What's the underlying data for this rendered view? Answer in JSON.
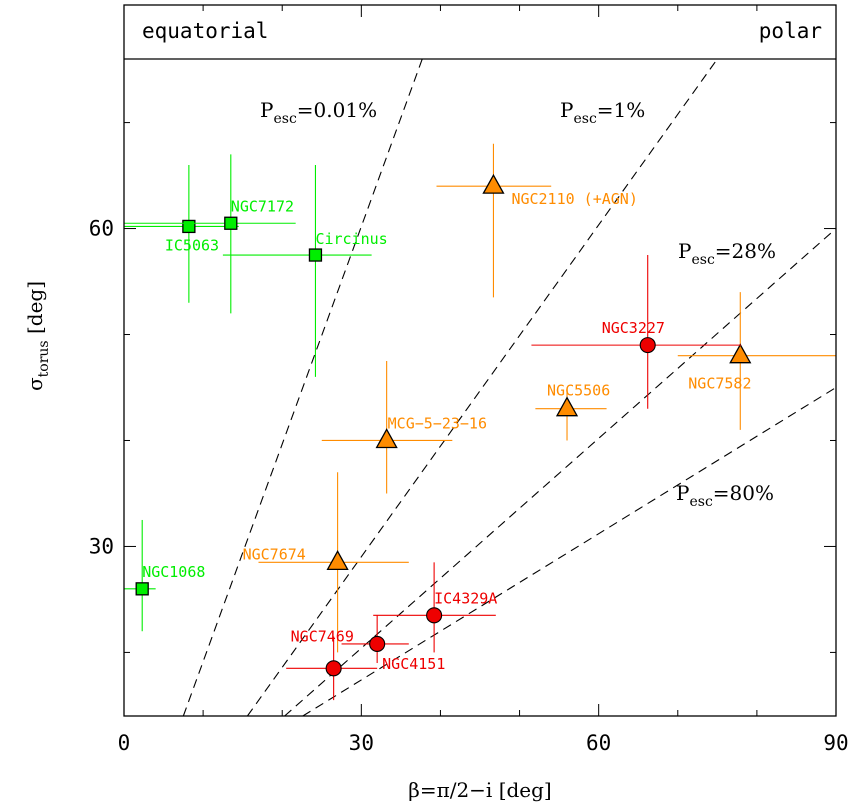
{
  "chart_data": {
    "type": "scatter",
    "title": "",
    "xlabel": "β=π/2−i [deg]",
    "ylabel": "σ_torus [deg]",
    "xlim": [
      0,
      90
    ],
    "ylim": [
      14,
      76
    ],
    "xticks": [
      0,
      30,
      60,
      90
    ],
    "yticks": [
      30,
      60
    ],
    "header": {
      "left": "equatorial",
      "right": "polar"
    },
    "colors": {
      "green": "#00ee00",
      "orange": "#ff8c00",
      "red": "#ee0000"
    },
    "escape_curves": [
      {
        "label_main": "P",
        "label_sub": "esc",
        "label_value": "=0.01%",
        "x_start": 7.5,
        "x_end": 37.7
      },
      {
        "label_main": "P",
        "label_sub": "esc",
        "label_value": "=1%",
        "x_start": 15.6,
        "x_end": 75.0
      },
      {
        "label_main": "P",
        "label_sub": "esc",
        "label_value": "=28%",
        "x_start": 20.3,
        "x_end": 90.0
      },
      {
        "label_main": "P",
        "label_sub": "esc",
        "label_value": "=80%",
        "x_start": 22.6,
        "x_end": 90.0
      }
    ],
    "series": [
      {
        "marker": "square",
        "color": "#00ee00",
        "fill": "#00ee00",
        "points": [
          {
            "label": "IC5063",
            "x": 8.2,
            "y": 60.2,
            "xerr": [
              0,
              14.5
            ],
            "yerr": [
              53,
              66
            ]
          },
          {
            "label": "NGC7172",
            "x": 13.5,
            "y": 60.5,
            "xerr": [
              0,
              21.7
            ],
            "yerr": [
              52,
              67
            ]
          },
          {
            "label": "Circinus",
            "x": 24.2,
            "y": 57.5,
            "xerr": [
              12.5,
              31.3
            ],
            "yerr": [
              46,
              66
            ]
          },
          {
            "label": "NGC1068",
            "x": 2.3,
            "y": 26.0,
            "xerr": [
              0,
              4.0
            ],
            "yerr": [
              22,
              32.5
            ]
          }
        ]
      },
      {
        "marker": "triangle",
        "color": "#ff8c00",
        "fill": "#ff8c00",
        "points": [
          {
            "label": "NGC2110 (+AGN)",
            "x": 46.7,
            "y": 64.0,
            "xerr": [
              39.5,
              54.0
            ],
            "yerr": [
              53.5,
              68.0
            ]
          },
          {
            "label": "NGC7582",
            "x": 77.9,
            "y": 48.0,
            "xerr": [
              70.0,
              90.0
            ],
            "yerr": [
              41.0,
              54.0
            ]
          },
          {
            "label": "NGC5506",
            "x": 56.0,
            "y": 43.0,
            "xerr": [
              52.0,
              61.0
            ],
            "yerr": [
              40.0,
              45.0
            ]
          },
          {
            "label": "MCG−5−23−16",
            "x": 33.2,
            "y": 40.0,
            "xerr": [
              25.0,
              41.5
            ],
            "yerr": [
              35.0,
              47.5
            ]
          },
          {
            "label": "NGC7674",
            "x": 27.0,
            "y": 28.5,
            "xerr": [
              17.0,
              36.0
            ],
            "yerr": [
              20.0,
              37.0
            ]
          }
        ]
      },
      {
        "marker": "circle",
        "color": "#ee0000",
        "fill": "#ee0000",
        "points": [
          {
            "label": "NGC3227",
            "x": 66.2,
            "y": 49.0,
            "xerr": [
              51.5,
              78.0
            ],
            "yerr": [
              43.0,
              57.5
            ]
          },
          {
            "label": "IC4329A",
            "x": 39.2,
            "y": 23.5,
            "xerr": [
              31.5,
              47.0
            ],
            "yerr": [
              20.0,
              28.5
            ]
          },
          {
            "label": "NGC7469",
            "x": 26.5,
            "y": 18.5,
            "xerr": [
              20.5,
              32.0
            ],
            "yerr": [
              15.5,
              21.5
            ]
          },
          {
            "label": "NGC4151",
            "x": 32.0,
            "y": 20.8,
            "xerr": [
              27.5,
              36.0
            ],
            "yerr": [
              19.0,
              23.5
            ]
          }
        ]
      }
    ]
  }
}
